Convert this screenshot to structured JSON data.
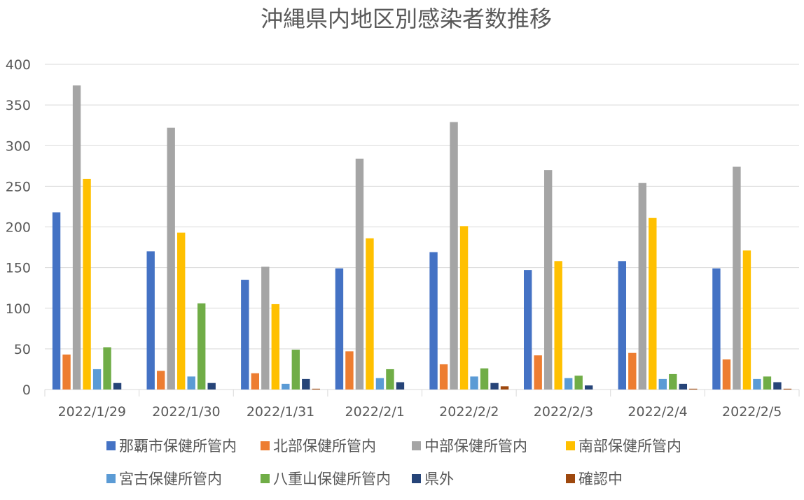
{
  "chart_data": {
    "type": "bar",
    "title": "沖縄県内地区別感染者数推移",
    "xlabel": "",
    "ylabel": "",
    "ylim": [
      0,
      400
    ],
    "yticks": [
      0,
      50,
      100,
      150,
      200,
      250,
      300,
      350,
      400
    ],
    "grid": true,
    "legend_position": "bottom",
    "categories": [
      "2022/1/29",
      "2022/1/30",
      "2022/1/31",
      "2022/2/1",
      "2022/2/2",
      "2022/2/3",
      "2022/2/4",
      "2022/2/5"
    ],
    "series": [
      {
        "name": "那覇市保健所管内",
        "color": "#4472C4",
        "values": [
          218,
          170,
          135,
          149,
          169,
          147,
          158,
          149
        ]
      },
      {
        "name": "北部保健所管内",
        "color": "#ED7D31",
        "values": [
          43,
          23,
          20,
          47,
          31,
          42,
          45,
          37
        ]
      },
      {
        "name": "中部保健所管内",
        "color": "#A5A5A5",
        "values": [
          374,
          322,
          151,
          284,
          329,
          270,
          254,
          274
        ]
      },
      {
        "name": "南部保健所管内",
        "color": "#FFC000",
        "values": [
          259,
          193,
          105,
          186,
          201,
          158,
          211,
          171
        ]
      },
      {
        "name": "宮古保健所管内",
        "color": "#5B9BD5",
        "values": [
          25,
          16,
          7,
          14,
          16,
          14,
          13,
          13
        ]
      },
      {
        "name": "八重山保健所管内",
        "color": "#70AD47",
        "values": [
          52,
          106,
          49,
          25,
          26,
          17,
          19,
          16
        ]
      },
      {
        "name": "県外",
        "color": "#264478",
        "values": [
          8,
          8,
          13,
          9,
          8,
          5,
          7,
          9
        ]
      },
      {
        "name": "確認中",
        "color": "#9E480E",
        "values": [
          0,
          0,
          1,
          0,
          4,
          0,
          1,
          1
        ]
      }
    ]
  }
}
